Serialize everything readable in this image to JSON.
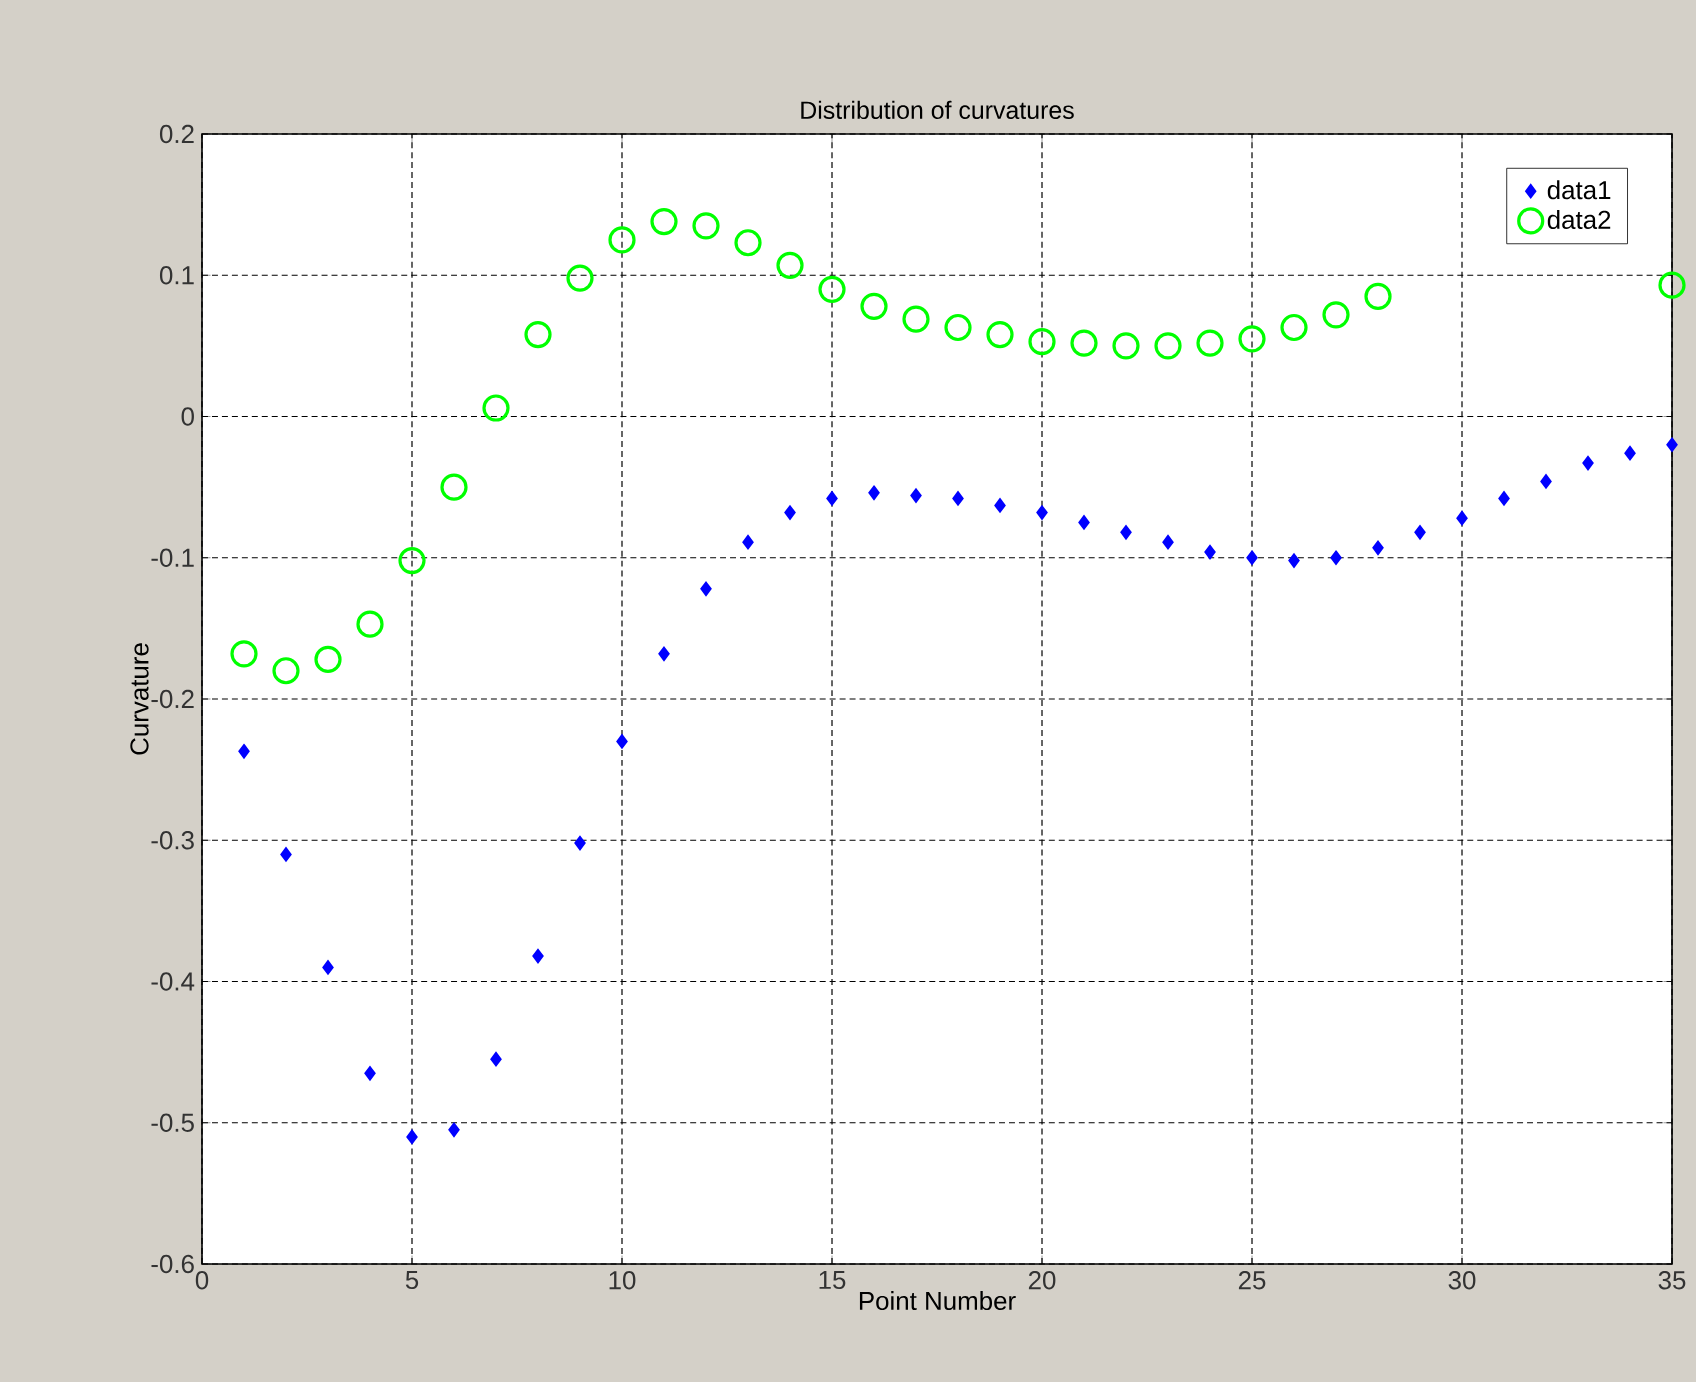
{
  "chart_data": {
    "type": "scatter",
    "title": "Distribution of curvatures",
    "xlabel": "Point Number",
    "ylabel": "Curvature",
    "x": [
      1,
      2,
      3,
      4,
      5,
      6,
      7,
      8,
      9,
      10,
      11,
      12,
      13,
      14,
      15,
      16,
      17,
      18,
      19,
      20,
      21,
      22,
      23,
      24,
      25,
      26,
      27,
      28,
      29,
      30,
      31,
      32,
      33,
      34,
      35
    ],
    "series": [
      {
        "name": "data1",
        "color": "#0000ff",
        "marker": "diamond",
        "values": [
          -0.237,
          -0.31,
          -0.39,
          -0.465,
          -0.51,
          -0.505,
          -0.455,
          -0.382,
          -0.302,
          -0.23,
          -0.168,
          -0.122,
          -0.089,
          -0.068,
          -0.058,
          -0.054,
          -0.056,
          -0.058,
          -0.063,
          -0.068,
          -0.075,
          -0.082,
          -0.089,
          -0.096,
          -0.1,
          -0.102,
          -0.1,
          -0.093,
          -0.082,
          -0.072,
          -0.058,
          -0.046,
          -0.033,
          -0.026,
          -0.02
        ]
      },
      {
        "name": "data2",
        "color": "#00ff00",
        "marker": "circle",
        "values": [
          -0.168,
          -0.18,
          -0.172,
          -0.147,
          -0.102,
          -0.05,
          0.006,
          0.058,
          0.098,
          0.125,
          0.138,
          0.135,
          0.123,
          0.107,
          0.09,
          0.078,
          0.069,
          0.063,
          0.058,
          0.053,
          0.052,
          0.05,
          0.05,
          0.052,
          0.055,
          0.063,
          0.072,
          0.085,
          null,
          null,
          null,
          null,
          null,
          null,
          0.093
        ]
      }
    ],
    "xlim": [
      0,
      35
    ],
    "xticks": [
      0,
      5,
      10,
      15,
      20,
      25,
      30,
      35
    ],
    "ylim": [
      -0.6,
      0.2
    ],
    "yticks": [
      -0.6,
      -0.5,
      -0.4,
      -0.3,
      -0.2,
      -0.1,
      0,
      0.1,
      0.2
    ],
    "grid": true,
    "legend": "top right"
  }
}
